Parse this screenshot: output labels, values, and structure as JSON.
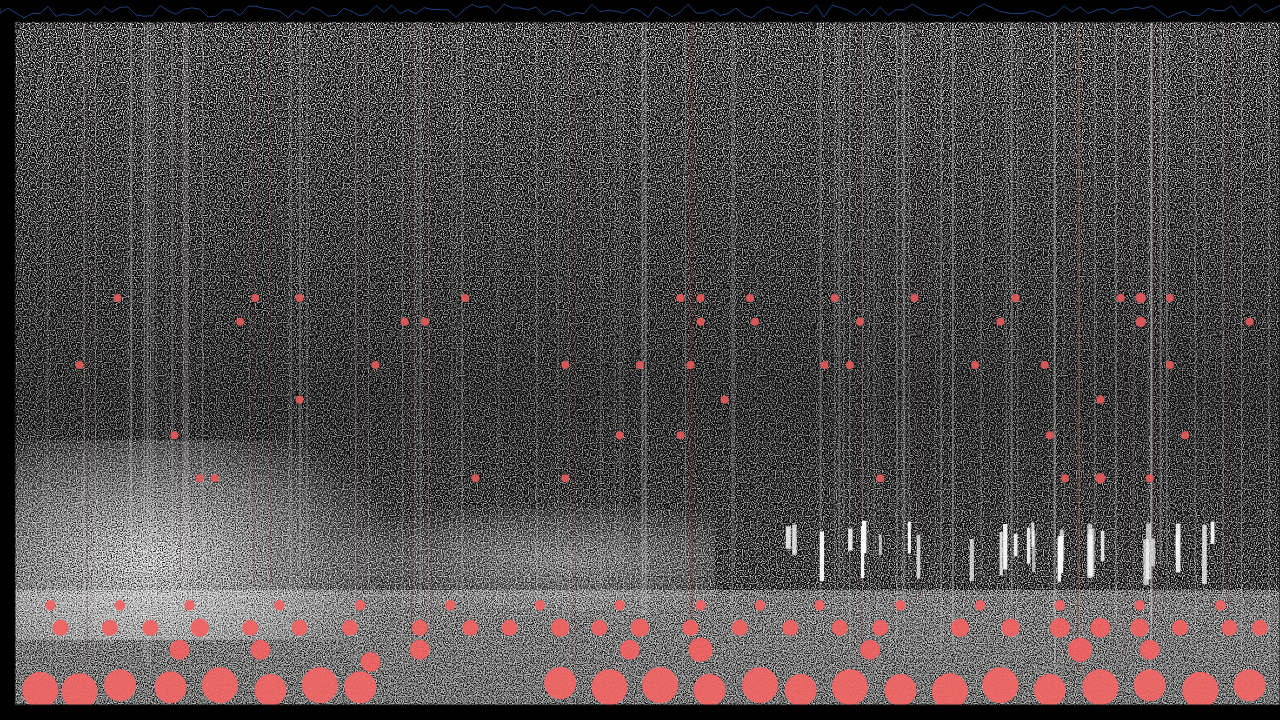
{
  "chart_data": {
    "type": "scatter",
    "xlim": [
      0,
      100
    ],
    "ylim": [
      0,
      100
    ],
    "tick_labels": false,
    "grid": false,
    "series": [
      {
        "color": "#e35a5a",
        "x": [
          8.1,
          19.0,
          22.5,
          35.6,
          52.6,
          54.2,
          58.1,
          64.8,
          71.1,
          79.1,
          87.4,
          89.0,
          91.3,
          17.8,
          30.8,
          32.4,
          54.2,
          58.5,
          66.8,
          77.9,
          89.0,
          97.6,
          5.1,
          28.5,
          43.5,
          49.4,
          53.4,
          64.0,
          66.0,
          75.9,
          81.4,
          91.3,
          22.5,
          56.1,
          85.8,
          12.6,
          47.8,
          52.6,
          81.8,
          92.5,
          14.6,
          15.8,
          36.4,
          43.5,
          68.4,
          83.0,
          85.8,
          89.7
        ],
        "values": [
          59.6,
          59.6,
          59.6,
          59.6,
          59.6,
          59.6,
          59.6,
          59.6,
          59.6,
          59.6,
          59.6,
          59.6,
          59.6,
          56.1,
          56.1,
          56.1,
          56.1,
          56.1,
          56.1,
          56.1,
          56.1,
          56.1,
          49.8,
          49.8,
          49.8,
          49.8,
          49.8,
          49.8,
          49.8,
          49.8,
          49.8,
          49.8,
          44.7,
          44.7,
          44.7,
          39.5,
          39.5,
          39.5,
          39.5,
          39.5,
          33.2,
          33.2,
          33.2,
          33.2,
          33.2,
          33.2,
          33.2,
          33.2
        ],
        "sizes": [
          1,
          1,
          1,
          1,
          1,
          1,
          1,
          1,
          1,
          1,
          1,
          1.3,
          1,
          1,
          1,
          1,
          1,
          1,
          1,
          1,
          1.3,
          1,
          1,
          1,
          1,
          1,
          1,
          1,
          1,
          1,
          1,
          1,
          1,
          1,
          1,
          1,
          1,
          1,
          1,
          1,
          1,
          1,
          1,
          1,
          1,
          1,
          1.3,
          1
        ]
      },
      {
        "color": "#f26262",
        "x": [
          3.6,
          7.5,
          10.7,
          14.6,
          18.6,
          22.5,
          26.5,
          32.0,
          36.0,
          39.1,
          43.1,
          46.2,
          49.4,
          53.4,
          57.3,
          61.3,
          65.2,
          68.4,
          74.7,
          78.7,
          82.6,
          85.8,
          88.9,
          92.1,
          96.0,
          98.4,
          2.8,
          8.3,
          13.8,
          20.9,
          27.3,
          34.4,
          41.5,
          47.8,
          54.2,
          58.9,
          63.6,
          70.0,
          76.3,
          82.6,
          88.9,
          95.3,
          13.0,
          19.4,
          32.0,
          48.6,
          54.2,
          67.6,
          84.2,
          89.7,
          28.1
        ],
        "values": [
          11.3,
          11.3,
          11.3,
          11.3,
          11.3,
          11.3,
          11.3,
          11.3,
          11.3,
          11.3,
          11.3,
          11.3,
          11.3,
          11.3,
          11.3,
          11.3,
          11.3,
          11.3,
          11.3,
          11.3,
          11.3,
          11.3,
          11.3,
          11.3,
          11.3,
          11.3,
          14.6,
          14.6,
          14.6,
          14.6,
          14.6,
          14.6,
          14.6,
          14.6,
          14.6,
          14.6,
          14.6,
          14.6,
          14.6,
          14.6,
          14.6,
          14.6,
          8.1,
          8.1,
          8.1,
          8.1,
          8.1,
          8.1,
          8.1,
          8.1,
          6.3
        ],
        "sizes": [
          2,
          2,
          2,
          2.3,
          2,
          2,
          2,
          2,
          2,
          2,
          2.3,
          2,
          2.3,
          2,
          2,
          2,
          2,
          2,
          2.3,
          2.3,
          2.5,
          2.5,
          2.3,
          2,
          2,
          2,
          1.3,
          1.3,
          1.3,
          1.3,
          1.3,
          1.3,
          1.3,
          1.3,
          1.3,
          1.3,
          1.3,
          1.3,
          1.3,
          1.3,
          1.3,
          1.3,
          2.5,
          2.5,
          2.5,
          2.5,
          3,
          2.5,
          3,
          2.5,
          2.5
        ]
      },
      {
        "color": "#f46666",
        "x": [
          2.0,
          5.1,
          8.3,
          12.3,
          16.2,
          20.2,
          24.1,
          27.3,
          43.1,
          47.0,
          51.0,
          54.9,
          58.9,
          62.1,
          66.0,
          70.0,
          73.9,
          77.9,
          81.8,
          85.8,
          89.7,
          93.7,
          97.6
        ],
        "values": [
          2.2,
          2.0,
          2.9,
          2.6,
          2.9,
          2.2,
          2.9,
          2.6,
          3.2,
          2.6,
          2.9,
          2.2,
          2.9,
          2.2,
          2.6,
          2.2,
          2.0,
          2.9,
          2.2,
          2.6,
          2.9,
          2.2,
          2.9
        ],
        "sizes": [
          4.5,
          4.5,
          4,
          4,
          4.5,
          4,
          4.5,
          4,
          4,
          4.5,
          4.5,
          4,
          4.5,
          4,
          4.5,
          4,
          4.5,
          4.5,
          4,
          4.5,
          4,
          4.5,
          4
        ]
      }
    ]
  }
}
